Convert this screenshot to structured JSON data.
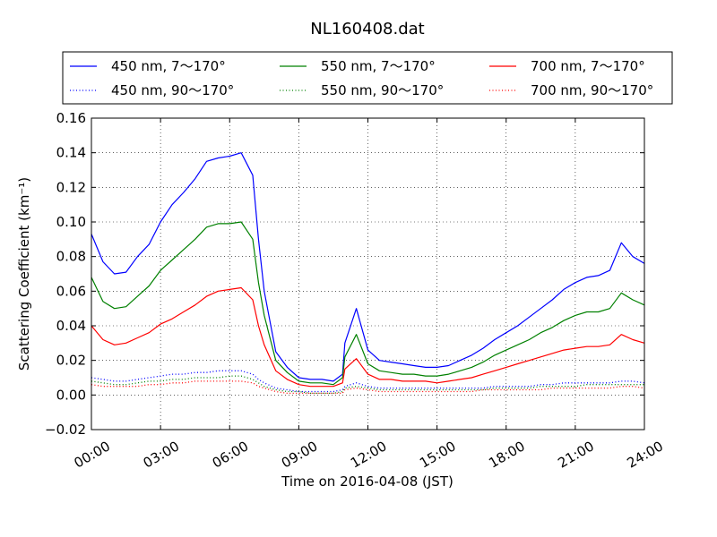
{
  "chart_data": {
    "type": "line",
    "title": "NL160408.dat",
    "xlabel": "Time on 2016-04-08 (JST)",
    "ylabel": "Scattering Coefficient (km⁻¹)",
    "xlim": [
      0,
      24
    ],
    "ylim": [
      -0.02,
      0.16
    ],
    "grid": true,
    "legend_position": "top (above plot)",
    "x_tick_labels": [
      "00:00",
      "03:00",
      "06:00",
      "09:00",
      "12:00",
      "15:00",
      "18:00",
      "21:00",
      "24:00"
    ],
    "y_tick_labels": [
      "−0.02",
      "0.00",
      "0.02",
      "0.04",
      "0.06",
      "0.08",
      "0.10",
      "0.12",
      "0.14",
      "0.16"
    ],
    "x": [
      0,
      0.5,
      1,
      1.5,
      2,
      2.5,
      3,
      3.5,
      4,
      4.5,
      5,
      5.5,
      6,
      6.5,
      7,
      7.25,
      7.5,
      8,
      8.5,
      9,
      9.5,
      10,
      10.5,
      10.9,
      11,
      11.5,
      12,
      12.5,
      13,
      13.5,
      14,
      14.5,
      15,
      15.5,
      16,
      16.5,
      17,
      17.5,
      18,
      18.5,
      19,
      19.5,
      20,
      20.5,
      21,
      21.5,
      22,
      22.5,
      23,
      23.5,
      24
    ],
    "series": [
      {
        "name": "450 nm, 7～170°",
        "color": "#0000ff",
        "style": "solid",
        "values": [
          0.093,
          0.077,
          0.07,
          0.071,
          0.08,
          0.087,
          0.1,
          0.11,
          0.117,
          0.125,
          0.135,
          0.137,
          0.138,
          0.14,
          0.127,
          0.09,
          0.06,
          0.025,
          0.016,
          0.01,
          0.009,
          0.009,
          0.008,
          0.012,
          0.03,
          0.05,
          0.026,
          0.02,
          0.019,
          0.018,
          0.017,
          0.016,
          0.016,
          0.017,
          0.02,
          0.023,
          0.027,
          0.032,
          0.036,
          0.04,
          0.045,
          0.05,
          0.055,
          0.061,
          0.065,
          0.068,
          0.069,
          0.072,
          0.088,
          0.08,
          0.076
        ]
      },
      {
        "name": "550 nm, 7～170°",
        "color": "#008000",
        "style": "solid",
        "values": [
          0.068,
          0.054,
          0.05,
          0.051,
          0.057,
          0.063,
          0.072,
          0.078,
          0.084,
          0.09,
          0.097,
          0.099,
          0.099,
          0.1,
          0.09,
          0.065,
          0.046,
          0.02,
          0.013,
          0.008,
          0.007,
          0.007,
          0.006,
          0.01,
          0.022,
          0.035,
          0.018,
          0.014,
          0.013,
          0.012,
          0.012,
          0.011,
          0.011,
          0.012,
          0.014,
          0.016,
          0.019,
          0.023,
          0.026,
          0.029,
          0.032,
          0.036,
          0.039,
          0.043,
          0.046,
          0.048,
          0.048,
          0.05,
          0.059,
          0.055,
          0.052
        ]
      },
      {
        "name": "700 nm, 7～170°",
        "color": "#ff0000",
        "style": "solid",
        "values": [
          0.04,
          0.032,
          0.029,
          0.03,
          0.033,
          0.036,
          0.041,
          0.044,
          0.048,
          0.052,
          0.057,
          0.06,
          0.061,
          0.062,
          0.055,
          0.04,
          0.029,
          0.014,
          0.009,
          0.006,
          0.005,
          0.005,
          0.005,
          0.007,
          0.015,
          0.021,
          0.012,
          0.009,
          0.009,
          0.008,
          0.008,
          0.008,
          0.007,
          0.008,
          0.009,
          0.01,
          0.012,
          0.014,
          0.016,
          0.018,
          0.02,
          0.022,
          0.024,
          0.026,
          0.027,
          0.028,
          0.028,
          0.029,
          0.035,
          0.032,
          0.03
        ]
      },
      {
        "name": "450 nm, 90～170°",
        "color": "#0000ff",
        "style": "dotted",
        "values": [
          0.01,
          0.009,
          0.008,
          0.008,
          0.009,
          0.01,
          0.011,
          0.012,
          0.012,
          0.013,
          0.013,
          0.014,
          0.014,
          0.014,
          0.012,
          0.009,
          0.007,
          0.004,
          0.003,
          0.002,
          0.002,
          0.002,
          0.002,
          0.003,
          0.005,
          0.007,
          0.005,
          0.004,
          0.004,
          0.004,
          0.004,
          0.004,
          0.004,
          0.004,
          0.004,
          0.004,
          0.004,
          0.005,
          0.005,
          0.005,
          0.005,
          0.006,
          0.006,
          0.007,
          0.007,
          0.007,
          0.007,
          0.007,
          0.008,
          0.008,
          0.007
        ]
      },
      {
        "name": "550 nm, 90～170°",
        "color": "#008000",
        "style": "dotted",
        "values": [
          0.008,
          0.007,
          0.006,
          0.006,
          0.007,
          0.008,
          0.008,
          0.009,
          0.009,
          0.01,
          0.01,
          0.01,
          0.011,
          0.011,
          0.009,
          0.007,
          0.005,
          0.003,
          0.002,
          0.002,
          0.001,
          0.001,
          0.001,
          0.002,
          0.004,
          0.005,
          0.004,
          0.003,
          0.003,
          0.003,
          0.003,
          0.003,
          0.003,
          0.003,
          0.003,
          0.003,
          0.003,
          0.004,
          0.004,
          0.004,
          0.004,
          0.005,
          0.005,
          0.005,
          0.005,
          0.006,
          0.006,
          0.006,
          0.006,
          0.006,
          0.006
        ]
      },
      {
        "name": "700 nm, 90～170°",
        "color": "#ff0000",
        "style": "dotted",
        "values": [
          0.006,
          0.005,
          0.005,
          0.005,
          0.005,
          0.006,
          0.006,
          0.007,
          0.007,
          0.008,
          0.008,
          0.008,
          0.008,
          0.008,
          0.007,
          0.005,
          0.004,
          0.002,
          0.001,
          0.001,
          0.001,
          0.001,
          0.001,
          0.001,
          0.003,
          0.004,
          0.003,
          0.002,
          0.002,
          0.002,
          0.002,
          0.002,
          0.002,
          0.002,
          0.002,
          0.002,
          0.003,
          0.003,
          0.003,
          0.003,
          0.003,
          0.003,
          0.004,
          0.004,
          0.004,
          0.004,
          0.004,
          0.004,
          0.005,
          0.005,
          0.004
        ]
      }
    ]
  }
}
